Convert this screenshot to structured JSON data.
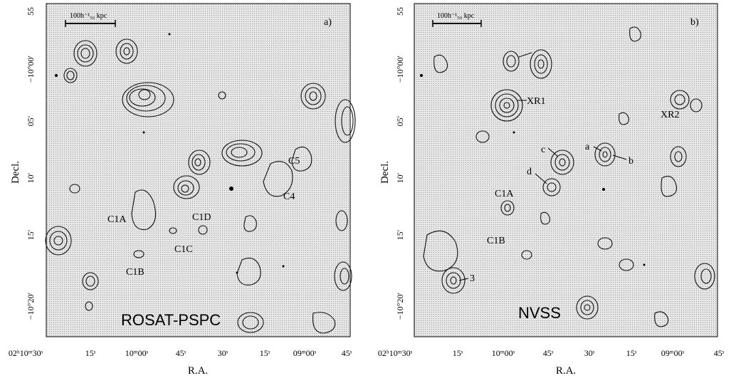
{
  "colors": {
    "background": "#d9d9d9",
    "contour": "#111111",
    "frame": "#000000"
  },
  "panels": [
    {
      "id": "a",
      "panel_letter": "a)",
      "survey_label": "ROSAT-PSPC",
      "scale_bar_label": "100h⁻¹₅₀ kpc",
      "source_labels": [
        "C1A",
        "C1B",
        "C1C",
        "C1D",
        "C4",
        "C5"
      ],
      "y_axis_title": "Decl.",
      "x_axis_title": "R.A.",
      "x_ticks": [
        "02ʰ10ᵐ30ˢ",
        "15ˢ",
        "10ᵐ00ˢ",
        "45ˢ",
        "30ˢ",
        "15ˢ",
        "09ᵐ00ˢ",
        "45ˢ"
      ],
      "y_ticks": [
        "55",
        "−10°00′",
        "05′",
        "10′",
        "15′",
        "−10°20′"
      ]
    },
    {
      "id": "b",
      "panel_letter": "b)",
      "survey_label": "NVSS",
      "scale_bar_label": "100h⁻¹₅₀ kpc",
      "source_labels": [
        "XR1",
        "XR2",
        "a",
        "b",
        "c",
        "d",
        "C1A",
        "C1B",
        "3"
      ],
      "y_axis_title": "Decl.",
      "x_axis_title": "R.A.",
      "x_ticks": [
        "02ʰ10ᵐ30ˢ",
        "15ˢ",
        "10ᵐ00ˢ",
        "45ˢ",
        "30ˢ",
        "15ˢ",
        "09ᵐ00ˢ",
        "45ˢ"
      ],
      "y_ticks": [
        "55",
        "−10°00′",
        "05′",
        "10′",
        "15′",
        "−10°20′"
      ]
    }
  ]
}
